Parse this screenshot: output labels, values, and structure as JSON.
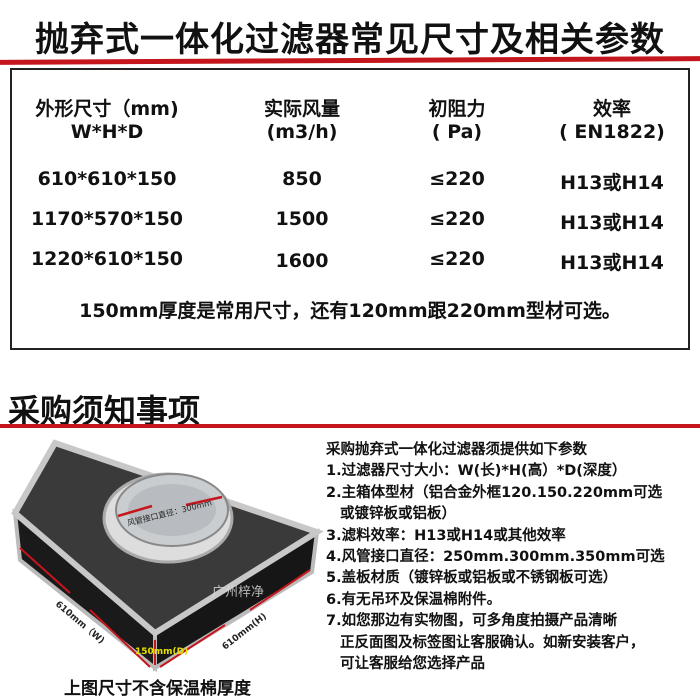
{
  "title": "抛弃式一体化过滤器常见尺寸及相关参数",
  "table": {
    "headers": [
      {
        "line1": "外形尺寸（mm)",
        "line2": "W*H*D"
      },
      {
        "line1": "实际风量",
        "line2": "(m3/h)"
      },
      {
        "line1": "初阻力",
        "line2": "( Pa)"
      },
      {
        "line1": "效率",
        "line2": "( EN1822)"
      }
    ],
    "rows": [
      [
        "610*610*150",
        "850",
        "≤220",
        "H13或H14"
      ],
      [
        "1170*570*150",
        "1500",
        "≤220",
        "H13或H14"
      ],
      [
        "1220*610*150",
        "1600",
        "≤220",
        "H13或H14"
      ]
    ],
    "note": "150mm厚度是常用尺寸，还有120mm跟220mm型材可选。"
  },
  "section2": {
    "title": "采购须知事项",
    "intro": "采购抛弃式一体化过滤器须提供如下参数",
    "items": [
      "1.过滤器尺寸大小：W(长)*H(高）*D(深度）",
      "2.主箱体型材（铝合金外框120.150.220mm可选",
      "   或镀锌板或铝板）",
      "3.滤料效率：H13或H14或其他效率",
      "4.风管接口直径：250mm.300mm.350mm可选",
      "5.盖板材质（镀锌板或铝板或不锈钢板可选）",
      "6.有无吊环及保温棉附件。",
      "7.如您那边有实物图，可多角度拍摄产品清晰",
      "   正反面图及标签图让客服确认。如新安装客户，",
      "   可让客服给您选择产品"
    ],
    "image_labels": {
      "diameter": "风管接口直径：300mm",
      "watermark": "广州梓净",
      "width": "610mm（W)",
      "height": "610mm(H)",
      "depth": "150mm(D)"
    },
    "caption": "上图尺寸不含保温棉厚度"
  },
  "colors": {
    "accent_red": "#c4161c"
  }
}
